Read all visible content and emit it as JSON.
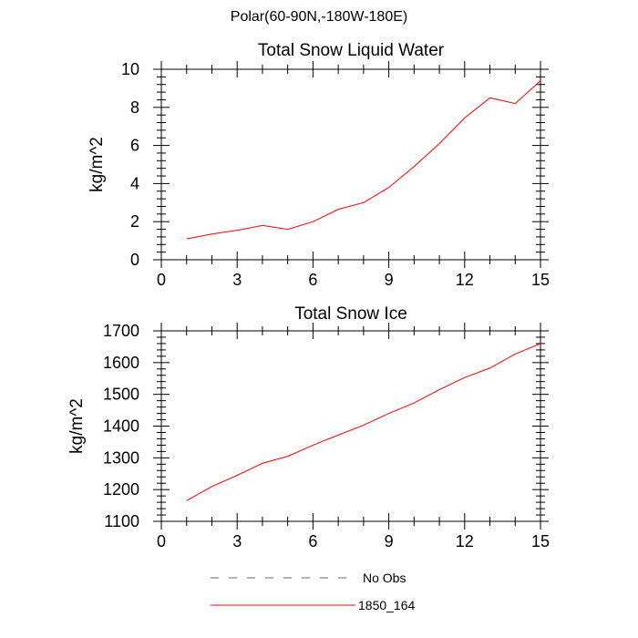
{
  "page_title": "Polar(60-90N,-180W-180E)",
  "chart_data": [
    {
      "type": "line",
      "title": "Total Snow Liquid Water",
      "xlabel": "",
      "ylabel": "kg/m^2",
      "xlim": [
        0,
        15
      ],
      "ylim": [
        0,
        10
      ],
      "x_ticks": [
        0,
        3,
        6,
        9,
        12,
        15
      ],
      "y_ticks": [
        0,
        2,
        4,
        6,
        8,
        10
      ],
      "x": [
        1,
        2,
        3,
        4,
        5,
        6,
        7,
        8,
        9,
        10,
        11,
        12,
        13,
        14,
        15
      ],
      "series": [
        {
          "name": "1850_164",
          "color": "#ff0000",
          "values": [
            1.1,
            1.35,
            1.55,
            1.8,
            1.6,
            2.0,
            2.65,
            3.0,
            3.8,
            4.9,
            6.1,
            7.45,
            8.5,
            8.2,
            9.4
          ]
        }
      ]
    },
    {
      "type": "line",
      "title": "Total Snow Ice",
      "xlabel": "",
      "ylabel": "kg/m^2",
      "xlim": [
        0,
        15
      ],
      "ylim": [
        1100,
        1700
      ],
      "x_ticks": [
        0,
        3,
        6,
        9,
        12,
        15
      ],
      "y_ticks": [
        1100,
        1200,
        1300,
        1400,
        1500,
        1600,
        1700
      ],
      "x": [
        1,
        2,
        3,
        4,
        5,
        6,
        7,
        8,
        9,
        10,
        11,
        12,
        13,
        14,
        15
      ],
      "series": [
        {
          "name": "1850_164",
          "color": "#ff0000",
          "values": [
            1165,
            1210,
            1245,
            1283,
            1305,
            1340,
            1372,
            1403,
            1440,
            1473,
            1515,
            1553,
            1583,
            1627,
            1660
          ]
        }
      ]
    }
  ],
  "legend": [
    {
      "label": "No Obs",
      "style": "dashed",
      "color": "#6a5f8f"
    },
    {
      "label": "1850_164",
      "style": "solid",
      "color": "#ff0000"
    }
  ]
}
